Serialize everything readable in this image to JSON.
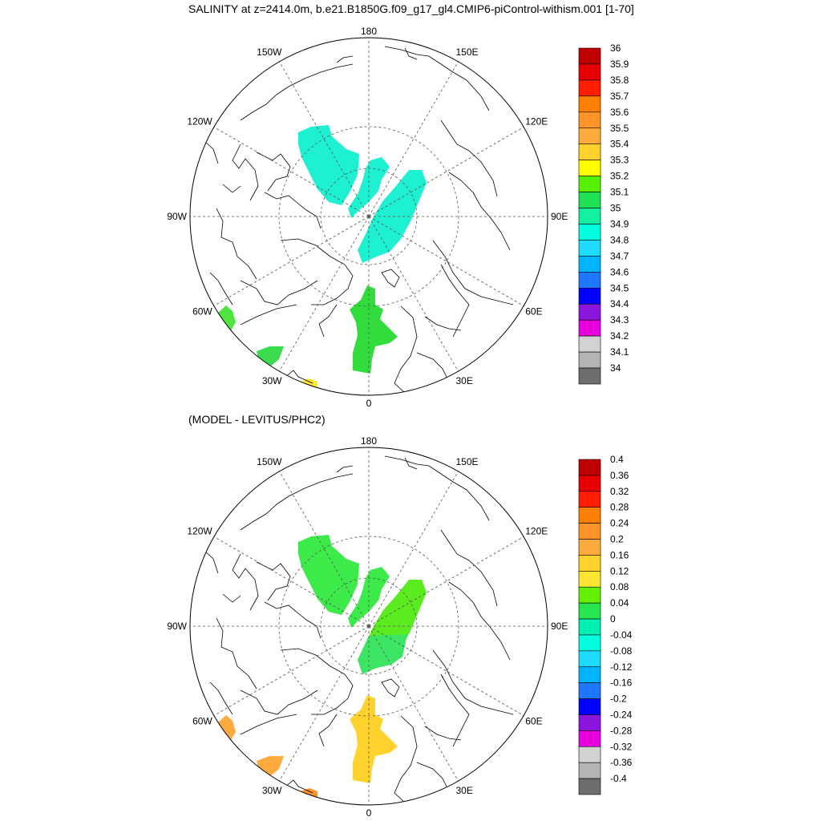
{
  "title": "SALINITY at z=2414.0m, b.e21.B1850G.f09_g17_gl4.CMIP6-piControl-withism.001 [1-70]",
  "subtitle": "(MODEL - LEVITUS/PHC2)",
  "maps": [
    {
      "name": "model-salinity",
      "lon_labels": [
        "180",
        "150E",
        "120E",
        "90E",
        "60E",
        "30E",
        "0",
        "30W",
        "60W",
        "90W",
        "120W",
        "150W"
      ],
      "colorbar": {
        "labels": [
          "36",
          "35.9",
          "35.8",
          "35.7",
          "35.6",
          "35.5",
          "35.4",
          "35.3",
          "35.2",
          "35.1",
          "35",
          "34.9",
          "34.8",
          "34.7",
          "34.6",
          "34.5",
          "34.4",
          "34.3",
          "34.2",
          "34.1",
          "34"
        ],
        "colors": [
          "#c00000",
          "#e60000",
          "#ff1e00",
          "#ff8000",
          "#ff9428",
          "#ffaa3c",
          "#ffd22d",
          "#ffff00",
          "#56f000",
          "#1ee050",
          "#14f0a0",
          "#00ffdc",
          "#1edcff",
          "#00b4ff",
          "#1e78ff",
          "#0000ff",
          "#8c14dc",
          "#e600dc",
          "#d2d2d2",
          "#b4b4b4",
          "#6e6e6e"
        ]
      },
      "regions": [
        {
          "name": "canada-basin-patch",
          "color": "#1ef0d2"
        },
        {
          "name": "lomonosov-patch",
          "color": "#1ef0d2"
        },
        {
          "name": "eurasian-basin-patch",
          "color": "#1ef0d2"
        },
        {
          "name": "nordic-seas-patch",
          "color": "#32dc3c"
        },
        {
          "name": "labrador-patch",
          "color": "#50e640"
        },
        {
          "name": "irminger-patch",
          "color": "#3cdc50"
        },
        {
          "name": "atlantic-patch",
          "color": "#ffe632"
        }
      ]
    },
    {
      "name": "model-minus-levitus",
      "lon_labels": [
        "180",
        "150E",
        "120E",
        "90E",
        "60E",
        "30E",
        "0",
        "30W",
        "60W",
        "90W",
        "120W",
        "150W"
      ],
      "colorbar": {
        "labels": [
          "0.4",
          "0.36",
          "0.32",
          "0.28",
          "0.24",
          "0.2",
          "0.16",
          "0.12",
          "0.08",
          "0.04",
          "0",
          "-0.04",
          "-0.08",
          "-0.12",
          "-0.16",
          "-0.2",
          "-0.24",
          "-0.28",
          "-0.32",
          "-0.36",
          "-0.4"
        ],
        "colors": [
          "#c00000",
          "#e60000",
          "#ff1e00",
          "#ff8000",
          "#ff9428",
          "#ffaa3c",
          "#ffd22d",
          "#ffe632",
          "#64f000",
          "#28e650",
          "#00f0b4",
          "#00ffdc",
          "#1edcff",
          "#00b4ff",
          "#1e78ff",
          "#0000ff",
          "#8c14dc",
          "#e600dc",
          "#d2d2d2",
          "#b4b4b4",
          "#6e6e6e"
        ]
      },
      "regions": [
        {
          "name": "canada-basin-patch",
          "color": "#3cea4a"
        },
        {
          "name": "lomonosov-patch",
          "color": "#3cea4a"
        },
        {
          "name": "eurasian-basin-patch",
          "color": "#5aec1e"
        },
        {
          "name": "eurasian-basin-lower-patch",
          "color": "#3ce664"
        },
        {
          "name": "nordic-seas-patch",
          "color": "#ffd22d"
        },
        {
          "name": "labrador-patch",
          "color": "#ffaa3c"
        },
        {
          "name": "irminger-patch",
          "color": "#ffaa3c"
        },
        {
          "name": "atlantic-patch",
          "color": "#ff9428"
        }
      ]
    }
  ]
}
